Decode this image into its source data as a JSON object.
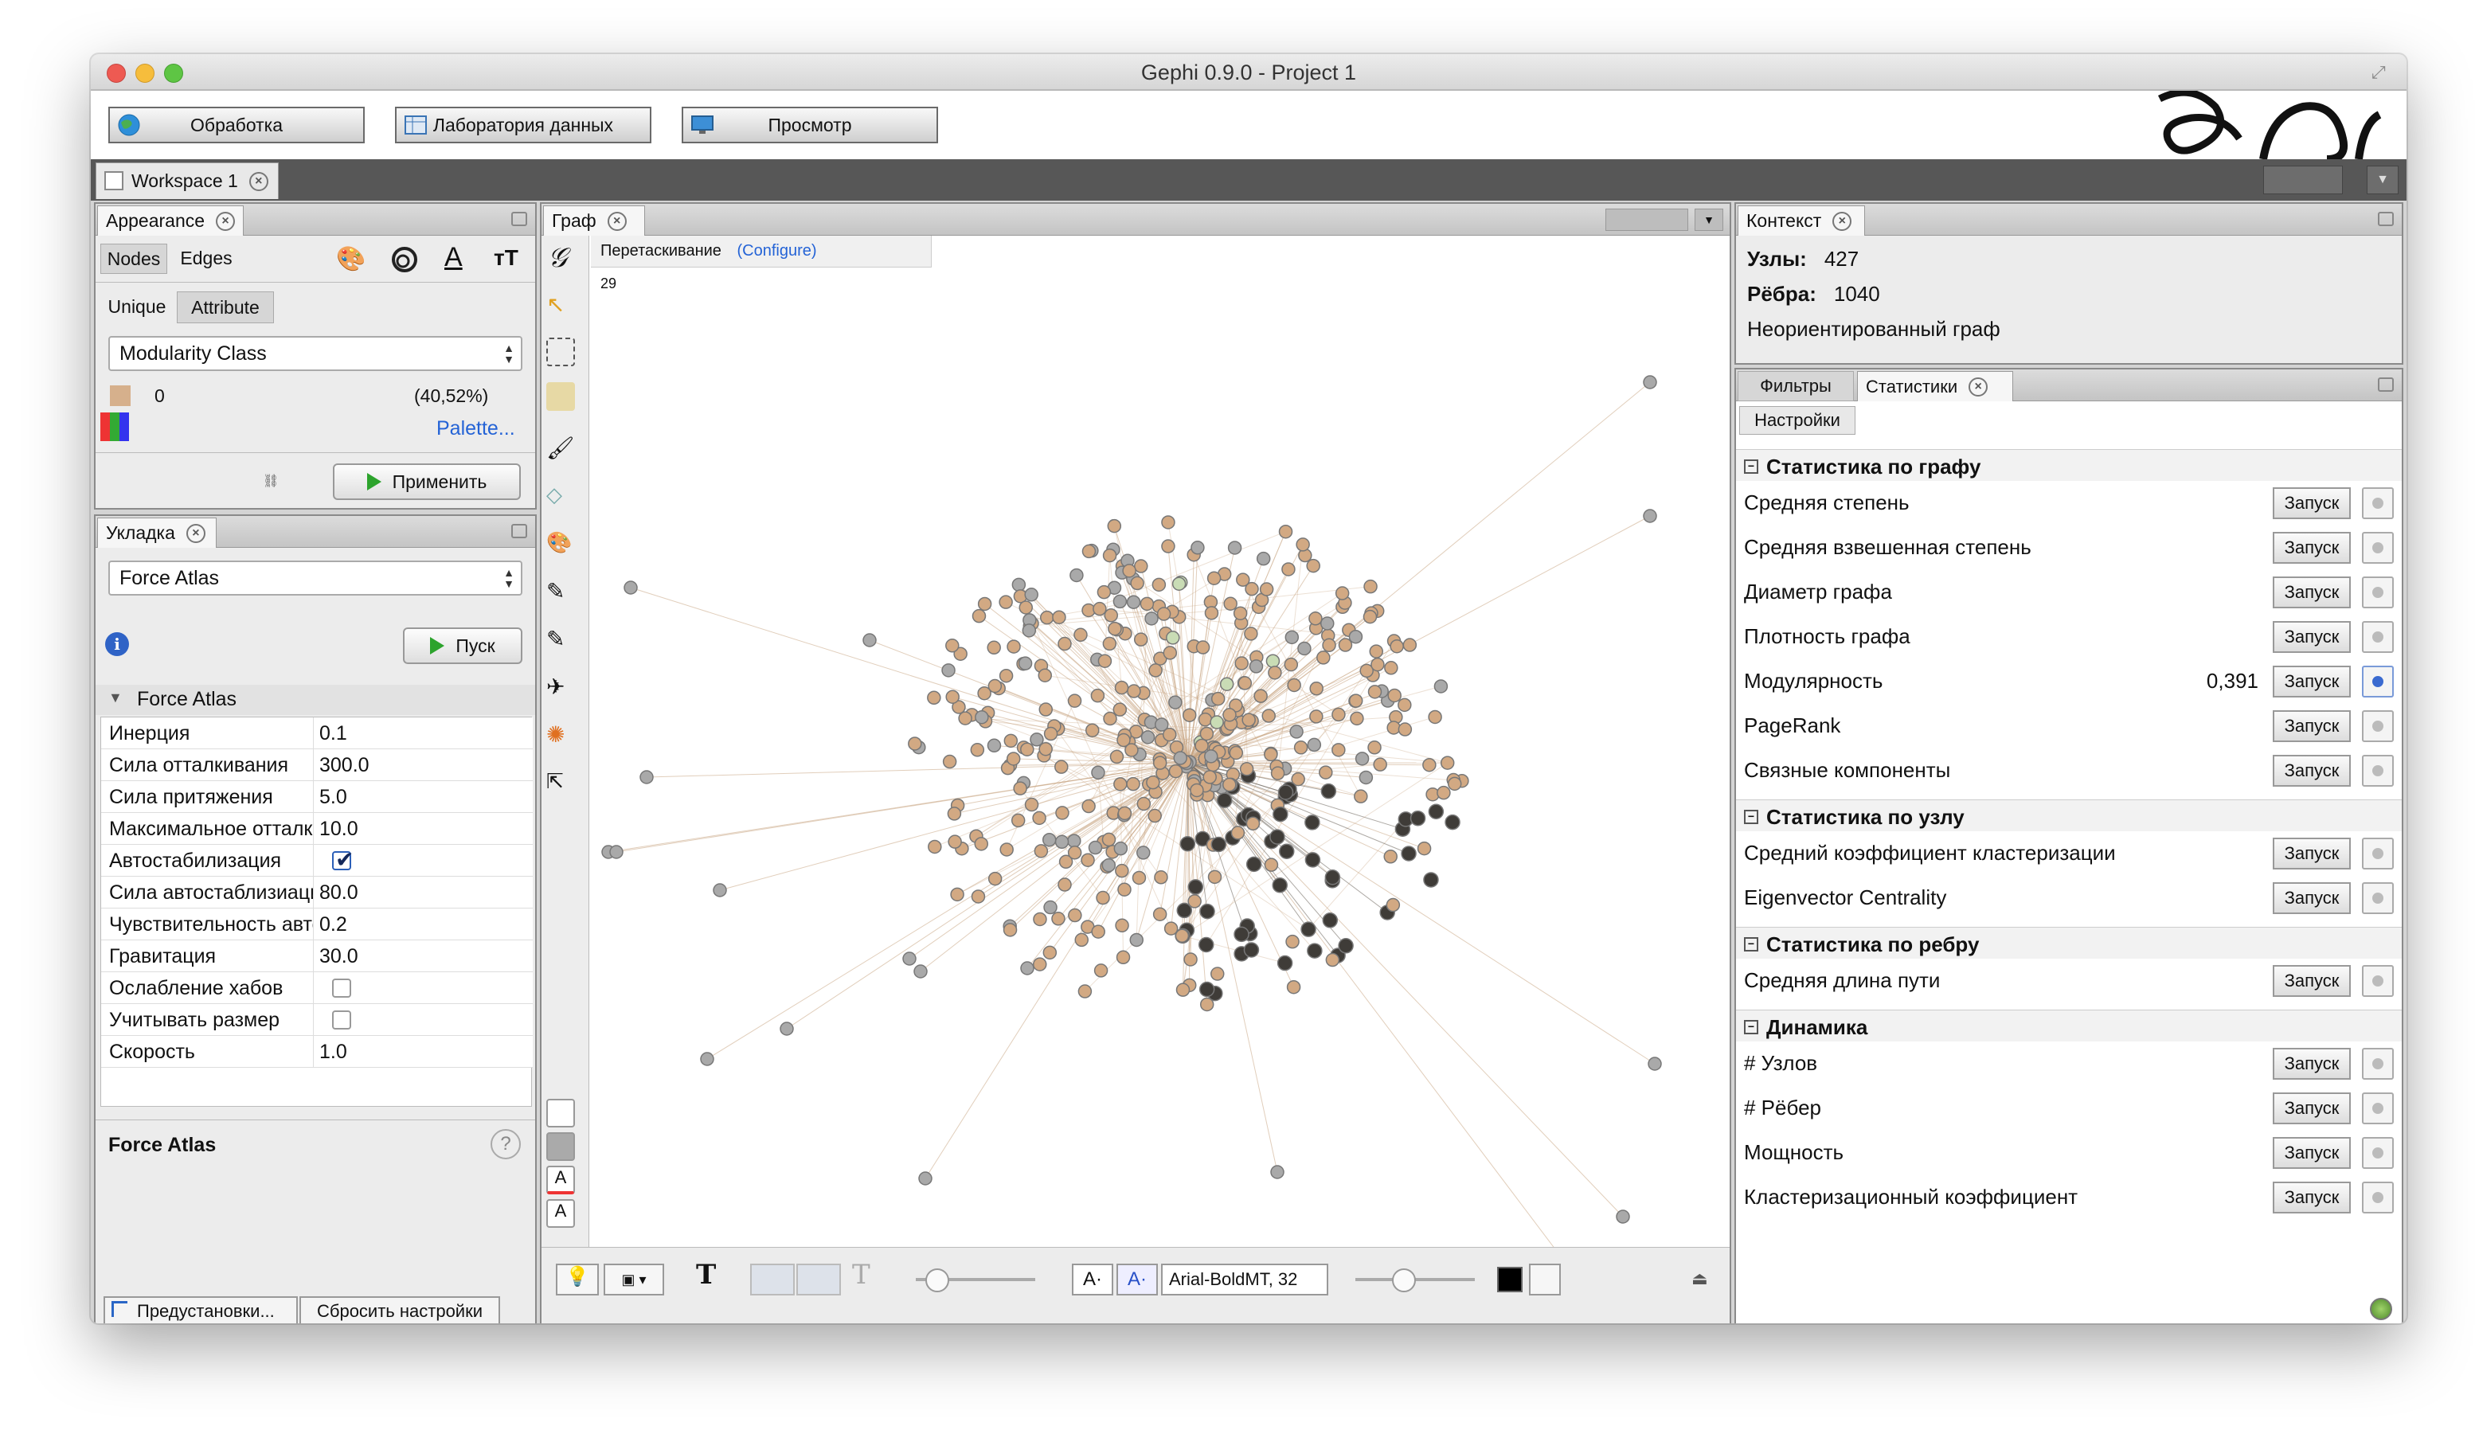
{
  "window": {
    "title": "Gephi 0.9.0 - Project 1"
  },
  "modes": [
    {
      "label": "Обработка",
      "icon": "globe-icon"
    },
    {
      "label": "Лаборатория данных",
      "icon": "table-icon"
    },
    {
      "label": "Просмотр",
      "icon": "monitor-icon"
    }
  ],
  "workspace": {
    "tab": "Workspace 1"
  },
  "appearance": {
    "tab": "Appearance",
    "subtabs": [
      "Nodes",
      "Edges"
    ],
    "modes": [
      "Unique",
      "Attribute"
    ],
    "attribute": "Modularity Class",
    "legend": [
      {
        "label": "0",
        "pct": "(40,52%)",
        "color": "#d6b08c"
      }
    ],
    "palette_link": "Palette...",
    "apply": "Применить"
  },
  "layout": {
    "tab": "Укладка",
    "algorithm": "Force Atlas",
    "run": "Пуск",
    "section": "Force Atlas",
    "props": [
      {
        "k": "Инерция",
        "v": "0.1"
      },
      {
        "k": "Сила отталкивания",
        "v": "300.0"
      },
      {
        "k": "Сила притяжения",
        "v": "5.0"
      },
      {
        "k": "Максимальное отталкивание",
        "v": "10.0"
      },
      {
        "k": "Автостабилизация",
        "v": "",
        "check": true
      },
      {
        "k": "Сила автостаблизиации",
        "v": "80.0"
      },
      {
        "k": "Чувствительность автостабилизации",
        "v": "0.2"
      },
      {
        "k": "Гравитация",
        "v": "30.0"
      },
      {
        "k": "Ослабление хабов",
        "v": "",
        "check": false
      },
      {
        "k": "Учитывать размер",
        "v": "",
        "check": false
      },
      {
        "k": "Скорость",
        "v": "1.0"
      }
    ],
    "desc_title": "Force Atlas",
    "presets": "Предустановки...",
    "reset": "Сбросить настройки"
  },
  "graph": {
    "tab": "Граф",
    "tool": "Перетаскивание",
    "configure": "(Configure)",
    "fps": "29",
    "font": "Arial-BoldMT, 32"
  },
  "context": {
    "tab": "Контекст",
    "nodes_label": "Узлы:",
    "nodes": "427",
    "edges_label": "Рёбра:",
    "edges": "1040",
    "type": "Неориентированный граф"
  },
  "stats": {
    "tabs": [
      "Фильтры",
      "Статистики"
    ],
    "settings": "Настройки",
    "run": "Запуск",
    "groups": [
      {
        "title": "Статистика по графу",
        "rows": [
          {
            "l": "Средняя степень",
            "v": ""
          },
          {
            "l": "Средняя взвешенная степень",
            "v": ""
          },
          {
            "l": "Диаметр графа",
            "v": ""
          },
          {
            "l": "Плотность графа",
            "v": ""
          },
          {
            "l": "Модулярность",
            "v": "0,391",
            "info": true
          },
          {
            "l": "PageRank",
            "v": ""
          },
          {
            "l": "Связные компоненты",
            "v": ""
          }
        ]
      },
      {
        "title": "Статистика по узлу",
        "rows": [
          {
            "l": "Средний коэффициент кластеризации",
            "v": ""
          },
          {
            "l": "Eigenvector Centrality",
            "v": ""
          }
        ]
      },
      {
        "title": "Статистика по ребру",
        "rows": [
          {
            "l": "Средняя длина пути",
            "v": ""
          }
        ]
      },
      {
        "title": "Динамика",
        "rows": [
          {
            "l": "# Узлов",
            "v": ""
          },
          {
            "l": "# Рёбер",
            "v": ""
          },
          {
            "l": "Мощность",
            "v": ""
          },
          {
            "l": "Кластеризационный коэффициент",
            "v": ""
          }
        ]
      }
    ]
  },
  "colors": {
    "tan": "#d2a983",
    "dark": "#3f3c38",
    "gray": "#a9a9a9",
    "green": "#c9dcb5",
    "edge": "#c8a583"
  }
}
